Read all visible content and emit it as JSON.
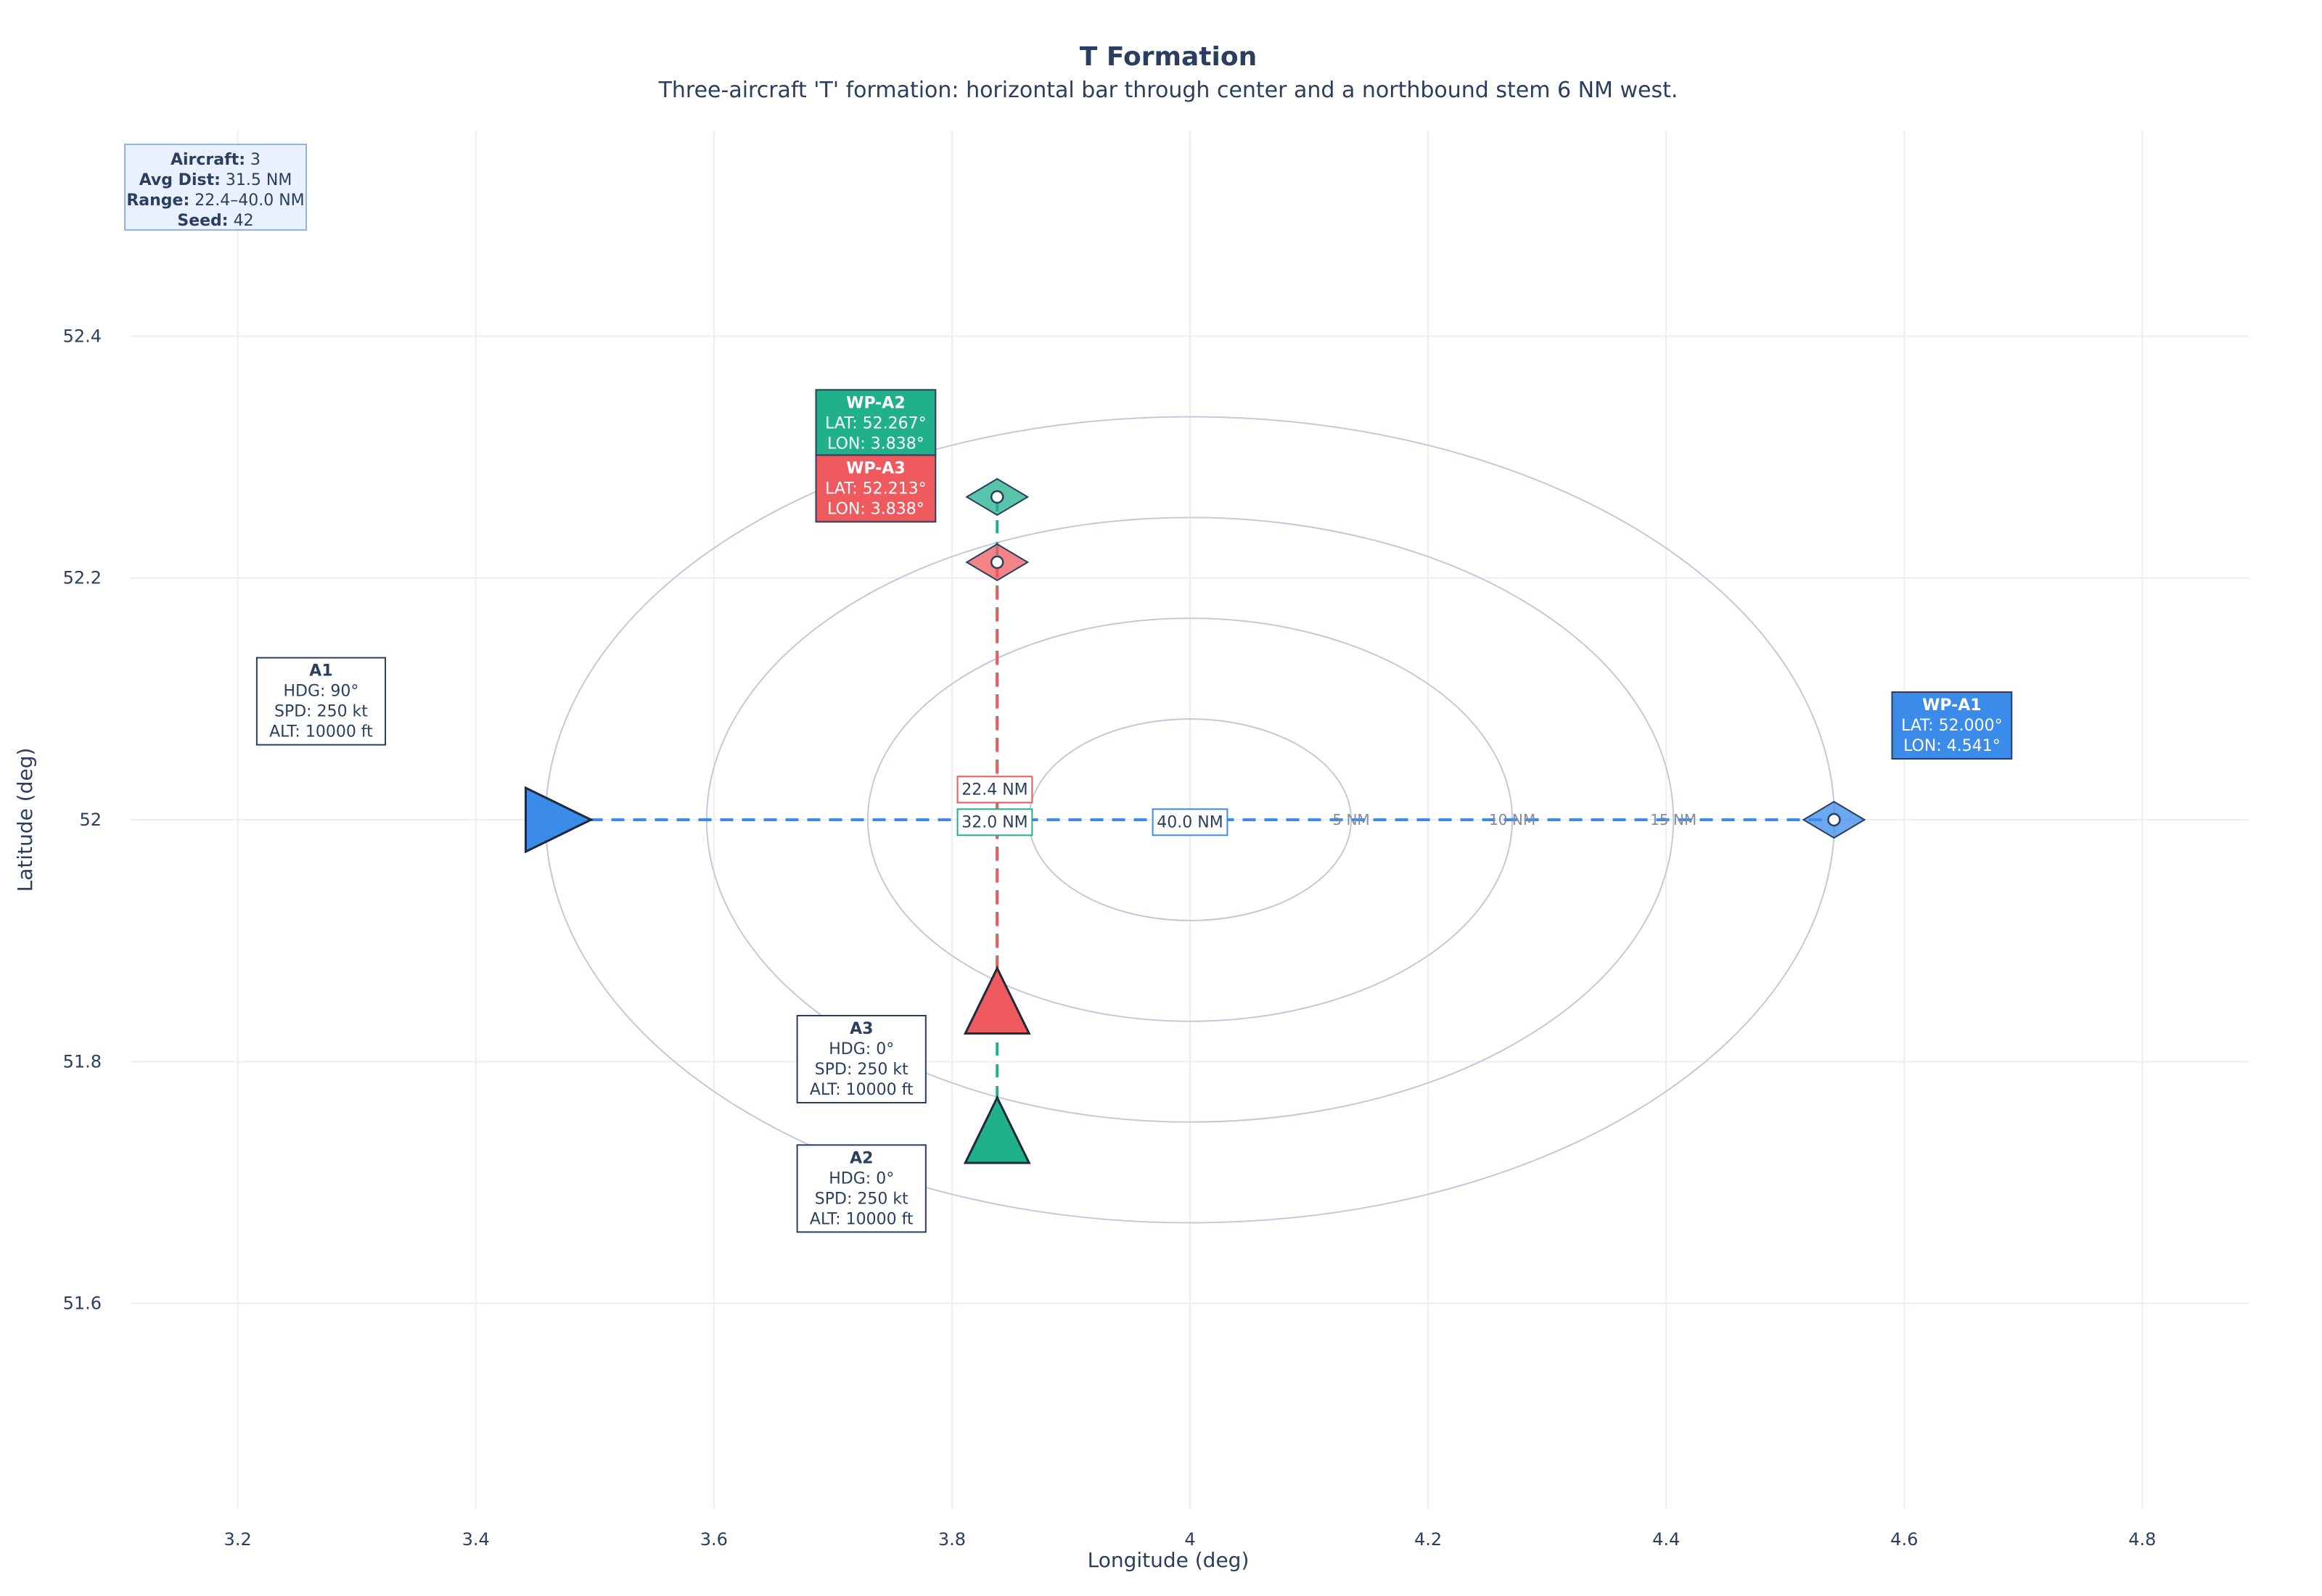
{
  "chart_data": {
    "type": "scatter",
    "title": "T Formation",
    "subtitle": "Three-aircraft 'T' formation: horizontal bar through center and a northbound stem 6 NM west.",
    "xlabel": "Longitude (deg)",
    "ylabel": "Latitude (deg)",
    "xlim": [
      3.11,
      4.89
    ],
    "ylim": [
      51.43,
      52.57
    ],
    "xticks": [
      3.2,
      3.4,
      3.6,
      3.8,
      4,
      4.2,
      4.4,
      4.6,
      4.8
    ],
    "yticks": [
      51.6,
      51.8,
      52,
      52.2,
      52.4
    ],
    "xtick_labels": [
      "3.2",
      "3.4",
      "3.6",
      "3.8",
      "4",
      "4.2",
      "4.4",
      "4.6",
      "4.8"
    ],
    "ytick_labels": [
      "51.6",
      "51.8",
      "52",
      "52.2",
      "52.4"
    ],
    "grid": true,
    "center": {
      "lon": 4.0,
      "lat": 52.0
    },
    "range_rings": [
      {
        "radius_nm": 5,
        "label": "5 NM"
      },
      {
        "radius_nm": 10,
        "label": "10 NM"
      },
      {
        "radius_nm": 15,
        "label": "15 NM"
      },
      {
        "radius_nm": 20,
        "label": ""
      }
    ],
    "info_box": [
      {
        "key": "Aircraft:",
        "value": " 3"
      },
      {
        "key": "Avg Dist:",
        "value": " 31.5 NM"
      },
      {
        "key": "Range:",
        "value": " 22.4–40.0 NM"
      },
      {
        "key": "Seed:",
        "value": " 42"
      }
    ],
    "aircraft": [
      {
        "id": "A1",
        "color": "#3b8bea",
        "start": {
          "lon": 3.459,
          "lat": 52.0
        },
        "heading": 90,
        "waypoint": {
          "lon": 4.541,
          "lat": 52.0
        },
        "info": [
          "A1",
          "HDG: 90°",
          "SPD: 250 kt",
          "ALT: 10000 ft"
        ],
        "info_anchor": {
          "lon": 3.27,
          "lat": 52.098
        },
        "wp_label": [
          "WP-A1",
          "LAT: 52.000°",
          "LON: 4.541°"
        ],
        "wp_anchor": {
          "lon": 4.64,
          "lat": 52.078
        },
        "dist_label": "40.0 NM",
        "dist_anchor": {
          "lon": 4.0,
          "lat": 51.998
        }
      },
      {
        "id": "A2",
        "color": "#21b08c",
        "start": {
          "lon": 3.838,
          "lat": 51.733
        },
        "heading": 0,
        "waypoint": {
          "lon": 3.838,
          "lat": 52.267
        },
        "info": [
          "A2",
          "HDG: 0°",
          "SPD: 250 kt",
          "ALT: 10000 ft"
        ],
        "info_anchor": {
          "lon": 3.724,
          "lat": 51.695
        },
        "wp_label": [
          "WP-A2",
          "LAT: 52.267°",
          "LON: 3.838°"
        ],
        "wp_anchor": {
          "lon": 3.736,
          "lat": 52.328
        },
        "dist_label": "32.0 NM",
        "dist_anchor": {
          "lon": 3.836,
          "lat": 51.998
        }
      },
      {
        "id": "A3",
        "color": "#ef5a5f",
        "start": {
          "lon": 3.838,
          "lat": 51.84
        },
        "heading": 0,
        "waypoint": {
          "lon": 3.838,
          "lat": 52.213
        },
        "info": [
          "A3",
          "HDG: 0°",
          "SPD: 250 kt",
          "ALT: 10000 ft"
        ],
        "info_anchor": {
          "lon": 3.724,
          "lat": 51.802
        },
        "wp_label": [
          "WP-A3",
          "LAT: 52.213°",
          "LON: 3.838°"
        ],
        "wp_anchor": {
          "lon": 3.736,
          "lat": 52.274
        },
        "dist_label": "22.4 NM",
        "dist_anchor": {
          "lon": 3.836,
          "lat": 52.025
        }
      }
    ]
  }
}
